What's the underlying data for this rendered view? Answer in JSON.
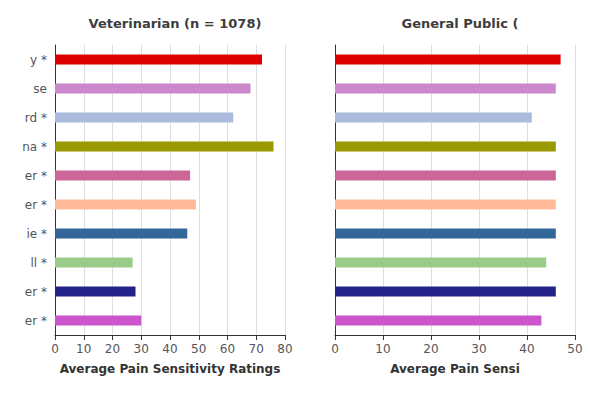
{
  "chart_data": [
    {
      "type": "bar",
      "orientation": "horizontal",
      "title": "Veterinarian (n = 1078)",
      "xlabel": "Average Pain Sensitivity Ratings",
      "categories": [
        "y *",
        "se",
        "rd *",
        "na *",
        "er *",
        "er *",
        "ie *",
        "ll *",
        "er *",
        "er *"
      ],
      "values": [
        72,
        68,
        62,
        76,
        47,
        49,
        46,
        27,
        28,
        30
      ],
      "colors": [
        "#dd0000",
        "#cc88cc",
        "#aabbdd",
        "#999900",
        "#cc6699",
        "#ffbb99",
        "#336699",
        "#99cc88",
        "#222288",
        "#cc55cc"
      ],
      "xlim": [
        0,
        80
      ],
      "xticks": [
        0,
        10,
        20,
        30,
        40,
        50,
        60,
        70,
        80
      ],
      "grid": true
    },
    {
      "type": "bar",
      "orientation": "horizontal",
      "title": "General Public (",
      "xlabel": "Average Pain Sensi",
      "categories": [
        null,
        null,
        null,
        null,
        null,
        null,
        null,
        null,
        null,
        null
      ],
      "values": [
        47,
        46,
        41,
        46,
        46,
        46,
        46,
        44,
        46,
        43
      ],
      "colors": [
        "#dd0000",
        "#cc88cc",
        "#aabbdd",
        "#999900",
        "#cc6699",
        "#ffbb99",
        "#336699",
        "#99cc88",
        "#222288",
        "#cc55cc"
      ],
      "xlim": [
        0,
        50
      ],
      "xticks": [
        0,
        10,
        20,
        30,
        40,
        50
      ],
      "grid": true,
      "tick_labels": "x"
    }
  ]
}
